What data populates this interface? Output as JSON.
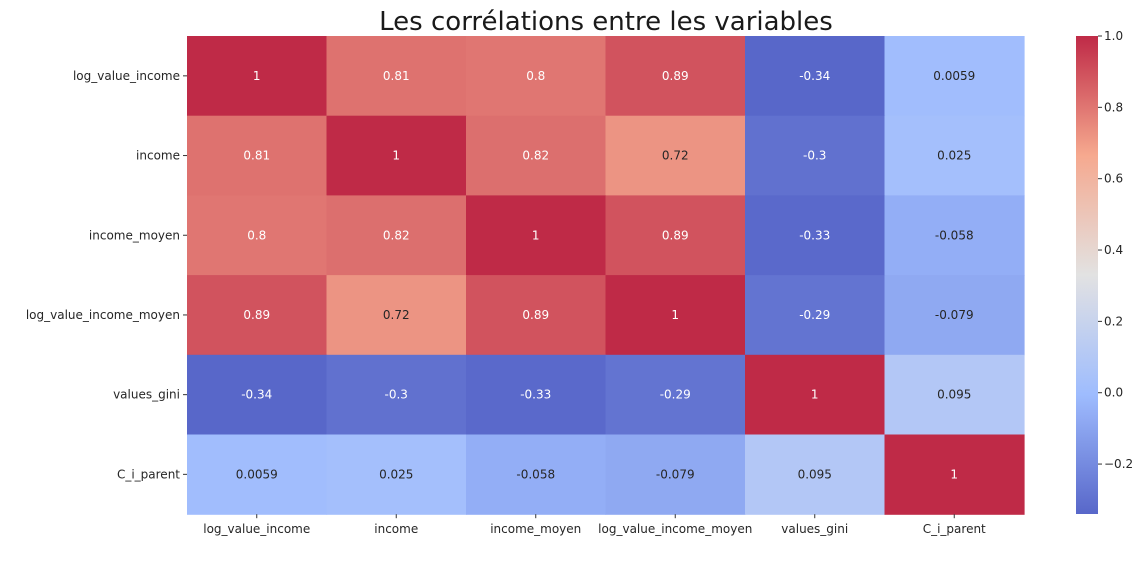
{
  "chart_data": {
    "type": "heatmap",
    "title": "Les corrélations entre les variables",
    "xlabel": "",
    "ylabel": "",
    "row_labels": [
      "log_value_income",
      "income",
      "income_moyen",
      "log_value_income_moyen",
      "values_gini",
      "C_i_parent"
    ],
    "col_labels": [
      "log_value_income",
      "income",
      "income_moyen",
      "log_value_income_moyen",
      "values_gini",
      "C_i_parent"
    ],
    "values": [
      [
        1,
        0.81,
        0.8,
        0.89,
        -0.34,
        0.0059
      ],
      [
        0.81,
        1,
        0.82,
        0.72,
        -0.3,
        0.025
      ],
      [
        0.8,
        0.82,
        1,
        0.89,
        -0.33,
        -0.058
      ],
      [
        0.89,
        0.72,
        0.89,
        1,
        -0.29,
        -0.079
      ],
      [
        -0.34,
        -0.3,
        -0.33,
        -0.29,
        1,
        0.095
      ],
      [
        0.0059,
        0.025,
        -0.058,
        -0.079,
        0.095,
        1
      ]
    ],
    "annotations": [
      [
        "1",
        "0.81",
        "0.8",
        "0.89",
        "-0.34",
        "0.0059"
      ],
      [
        "0.81",
        "1",
        "0.82",
        "0.72",
        "-0.3",
        "0.025"
      ],
      [
        "0.8",
        "0.82",
        "1",
        "0.89",
        "-0.33",
        "-0.058"
      ],
      [
        "0.89",
        "0.72",
        "0.89",
        "1",
        "-0.29",
        "-0.079"
      ],
      [
        "-0.34",
        "-0.3",
        "-0.33",
        "-0.29",
        "1",
        "0.095"
      ],
      [
        "0.0059",
        "0.025",
        "-0.058",
        "-0.079",
        "0.095",
        "1"
      ]
    ],
    "colormap": "coolwarm",
    "colorbar": {
      "min": -0.34,
      "max": 1.0,
      "ticks": [
        -0.2,
        0.0,
        0.2,
        0.4,
        0.6,
        0.8,
        1.0
      ],
      "tick_labels": [
        "−0.2",
        "0.0",
        "0.2",
        "0.4",
        "0.6",
        "0.8",
        "1.0"
      ],
      "placement": "right"
    }
  }
}
